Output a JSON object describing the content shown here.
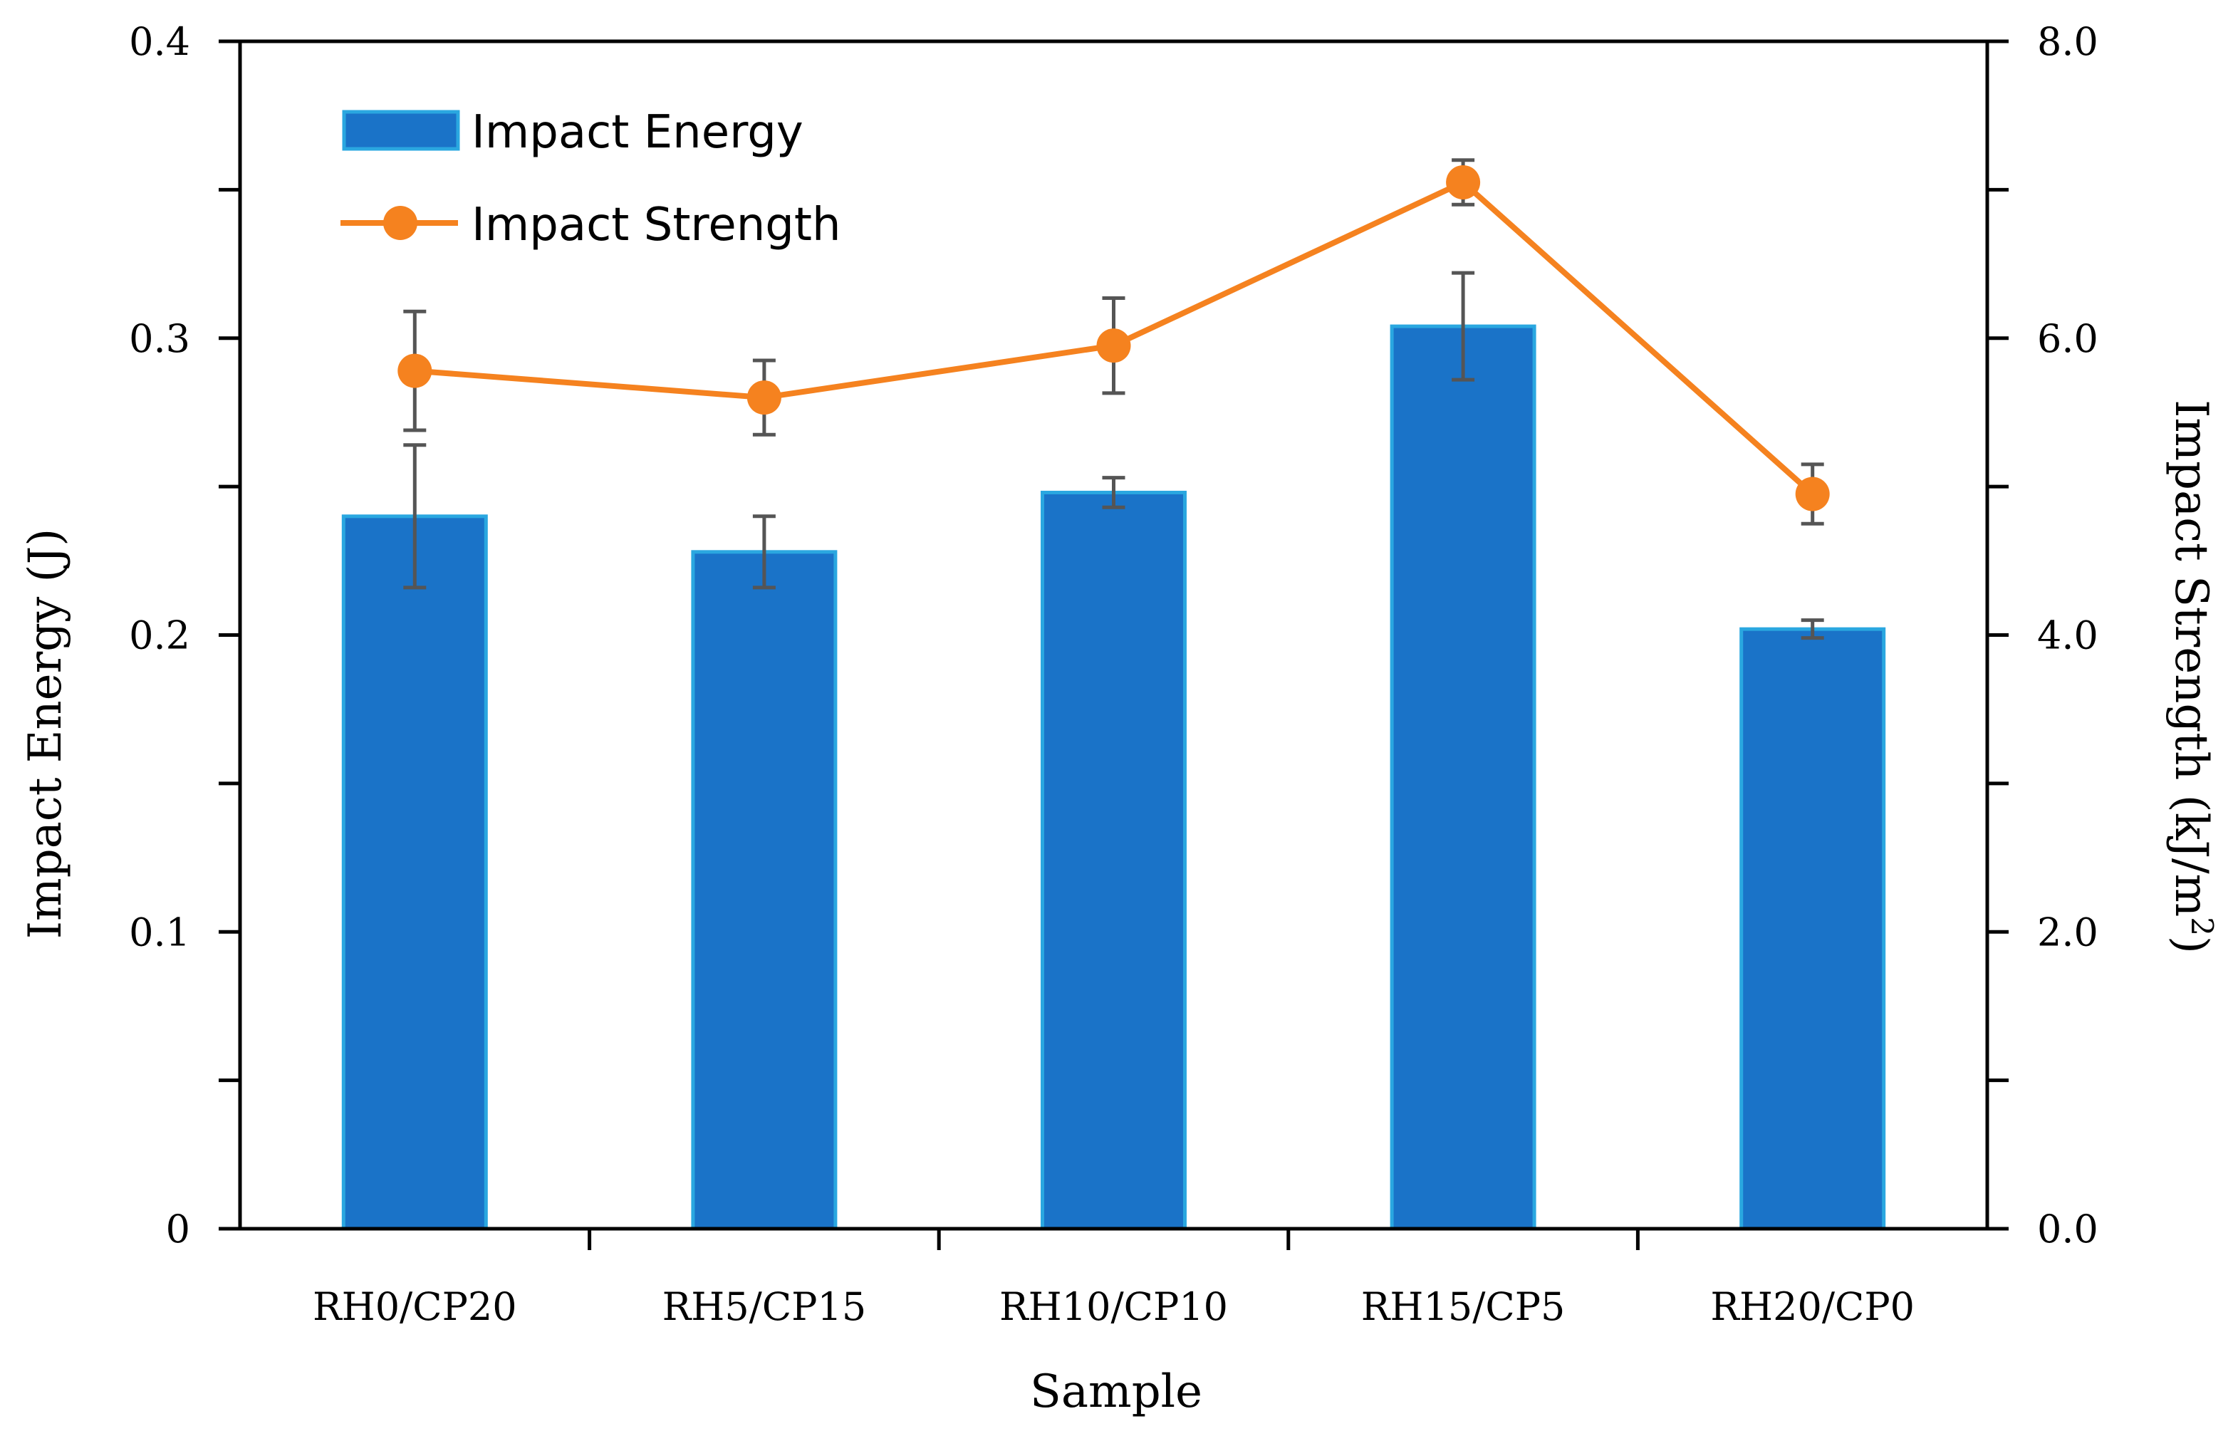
{
  "chart_data": {
    "type": "bar",
    "categories": [
      "RH0/CP20",
      "RH5/CP15",
      "RH10/CP10",
      "RH15/CP5",
      "RH20/CP0"
    ],
    "series": [
      {
        "name": "Impact Energy",
        "kind": "bar",
        "axis": "left",
        "values": [
          0.24,
          0.228,
          0.248,
          0.304,
          0.202
        ],
        "errors": [
          0.024,
          0.012,
          0.005,
          0.018,
          0.003
        ]
      },
      {
        "name": "Impact Strength",
        "kind": "line",
        "axis": "right",
        "values": [
          5.78,
          5.6,
          5.95,
          7.05,
          4.95
        ],
        "errors": [
          0.4,
          0.25,
          0.32,
          0.15,
          0.2
        ]
      }
    ],
    "xlabel": "Sample",
    "ylabel": "Impact Energy (J)",
    "y2label": "Impact Strength (kJ/m",
    "y2label_sup": "2",
    "y2label_end": ")",
    "ylim": [
      0,
      0.4
    ],
    "y2lim": [
      0,
      8.0
    ],
    "yticks": [
      "0",
      "0.1",
      "0.2",
      "0.3",
      "0.4"
    ],
    "y2ticks": [
      "0.0",
      "2.0",
      "4.0",
      "6.0",
      "8.0"
    ],
    "legend_position": "top-left",
    "grid": false,
    "colors": {
      "bar_fill": "#1a73c8",
      "bar_edge": "#2aa7e0",
      "line": "#f5821f",
      "error": "#555555",
      "axis": "#000000"
    }
  }
}
